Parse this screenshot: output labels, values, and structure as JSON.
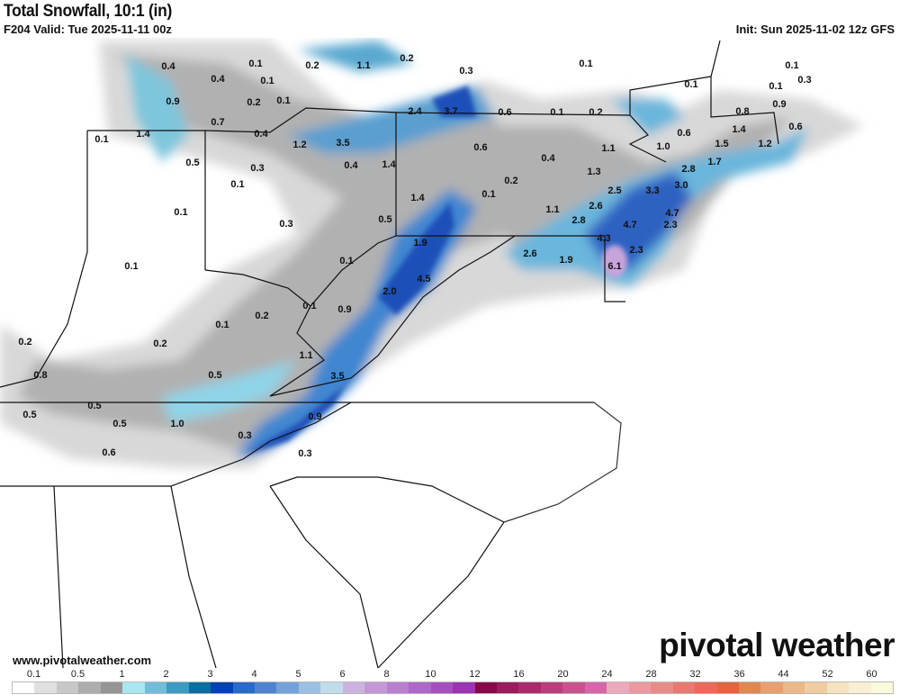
{
  "header": {
    "title": "Total Snowfall, 10:1 (in)",
    "valid": "F204 Valid: Tue 2025-11-11 00z",
    "init": "Init: Sun 2025-11-02 12z GFS"
  },
  "footer": {
    "url": "www.pivotalweather.com",
    "logo": "pivotal weather"
  },
  "legend": {
    "labels": [
      "0.1",
      "0.5",
      "1",
      "2",
      "3",
      "4",
      "5",
      "6",
      "8",
      "10",
      "12",
      "16",
      "20",
      "24",
      "28",
      "32",
      "36",
      "44",
      "52",
      "60"
    ],
    "colors": [
      "#ffffff",
      "#e0e0e0",
      "#c8c8c8",
      "#adadad",
      "#959595",
      "#a8e6f0",
      "#72bcd9",
      "#3d9ac0",
      "#0a6fa0",
      "#0042b0",
      "#2a6ac8",
      "#4f85d0",
      "#74a2d8",
      "#9bc0e3",
      "#c0dcea",
      "#ccb3de",
      "#c498d6",
      "#b87fcf",
      "#ad68c8",
      "#a650bf",
      "#9a35b0",
      "#850a4a",
      "#981d5c",
      "#a82c6c",
      "#b83e7c",
      "#c8528f",
      "#d666aa",
      "#eba9bc",
      "#eb9aa0",
      "#e88c88",
      "#e67a70",
      "#e86a58",
      "#e06540",
      "#e08850",
      "#e8a070",
      "#ecb888",
      "#f0cca0",
      "#f5e2c0",
      "#f8efd4",
      "#fafadc"
    ]
  },
  "map_values": [
    "0.4",
    "0.4",
    "0.1",
    "0.1",
    "0.2",
    "1.1",
    "0.2",
    "0.3",
    "0.1",
    "0.1",
    "0.1",
    "0.1",
    "0.3",
    "0.9",
    "0.2",
    "0.1",
    "0.7",
    "2.4",
    "3.7",
    "0.6",
    "0.1",
    "0.2",
    "0.8",
    "0.9",
    "0.6",
    "0.1",
    "1.4",
    "0.4",
    "1.2",
    "3.5",
    "0.6",
    "1.4",
    "0.6",
    "1.0",
    "1.5",
    "1.2",
    "1.1",
    "0.5",
    "0.3",
    "0.4",
    "1.4",
    "0.4",
    "1.3",
    "2.8",
    "1.7",
    "3.0",
    "0.1",
    "0.2",
    "0.1",
    "2.5",
    "3.3",
    "1.4",
    "2.6",
    "4.7",
    "0.1",
    "0.3",
    "0.5",
    "1.1",
    "2.8",
    "4.7",
    "2.3",
    "1.9",
    "4.3",
    "2.3",
    "2.6",
    "1.9",
    "6.1",
    "0.1",
    "0.1",
    "4.5",
    "2.0",
    "0.9",
    "0.1",
    "0.2",
    "0.1",
    "0.2",
    "0.2",
    "0.8",
    "0.5",
    "1.1",
    "3.5",
    "0.5",
    "0.5",
    "0.5",
    "1.0",
    "0.9",
    "0.3",
    "0.6",
    "0.3"
  ]
}
